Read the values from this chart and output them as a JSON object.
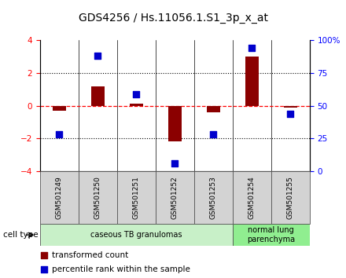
{
  "title": "GDS4256 / Hs.11056.1.S1_3p_x_at",
  "samples": [
    "GSM501249",
    "GSM501250",
    "GSM501251",
    "GSM501252",
    "GSM501253",
    "GSM501254",
    "GSM501255"
  ],
  "red_bars": [
    -0.3,
    1.2,
    0.1,
    -2.2,
    -0.4,
    3.0,
    -0.1
  ],
  "blue_squares_pct": [
    28,
    88,
    59,
    6,
    28,
    94,
    44
  ],
  "ylim": [
    -4,
    4
  ],
  "yticks_left": [
    -4,
    -2,
    0,
    2,
    4
  ],
  "yticks_right_pct": [
    0,
    25,
    50,
    75,
    100
  ],
  "dotted_lines": [
    -2,
    2
  ],
  "cell_types": [
    {
      "label": "caseous TB granulomas",
      "samples_range": [
        0,
        4
      ],
      "color": "#c8f0c8"
    },
    {
      "label": "normal lung\nparenchyma",
      "samples_range": [
        5,
        6
      ],
      "color": "#90ee90"
    }
  ],
  "bar_color": "#8b0000",
  "square_color": "#0000cc",
  "bar_width": 0.35,
  "square_size": 35,
  "cell_type_label": "cell type",
  "legend_red": "transformed count",
  "legend_blue": "percentile rank within the sample",
  "bg_color": "#ffffff",
  "plot_bg": "#ffffff",
  "tick_area_bg": "#d3d3d3",
  "title_fontsize": 10,
  "axis_fontsize": 7.5,
  "legend_fontsize": 7.5,
  "sample_fontsize": 6.5
}
